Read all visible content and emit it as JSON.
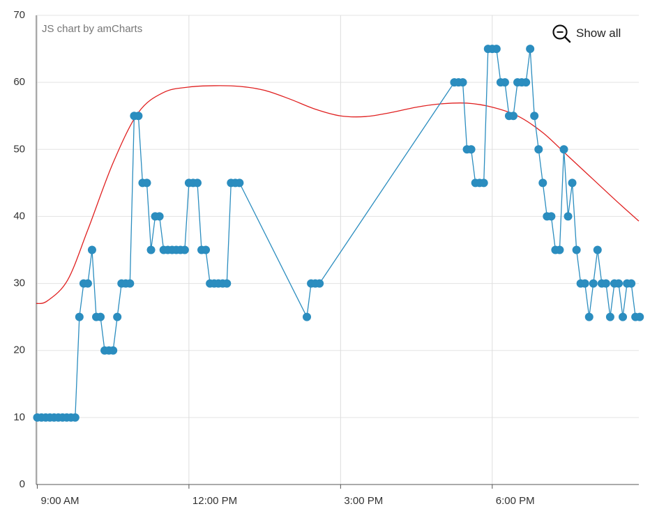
{
  "credit": "JS chart by amCharts",
  "zoom_out_label": "Show all",
  "chart_data": {
    "type": "line",
    "ylim": [
      0,
      70
    ],
    "y_ticks": [
      0,
      10,
      20,
      30,
      40,
      50,
      60,
      70
    ],
    "x_unit": "hours",
    "xlim": [
      8.98,
      20.9
    ],
    "x_ticks": [
      {
        "x": 9,
        "label": "9:00 AM"
      },
      {
        "x": 12,
        "label": "12:00 PM"
      },
      {
        "x": 15,
        "label": "3:00 PM"
      },
      {
        "x": 18,
        "label": "6:00 PM"
      }
    ],
    "grid": true,
    "colors": {
      "series": "#2b8dbf",
      "marker": "#2b8dbf",
      "trend": "#e02020"
    },
    "series": [
      {
        "kind": "markers-line",
        "points": [
          [
            9.0,
            10
          ],
          [
            9.083,
            10
          ],
          [
            9.167,
            10
          ],
          [
            9.25,
            10
          ],
          [
            9.333,
            10
          ],
          [
            9.417,
            10
          ],
          [
            9.5,
            10
          ],
          [
            9.583,
            10
          ],
          [
            9.667,
            10
          ],
          [
            9.75,
            10
          ],
          [
            9.833,
            25
          ],
          [
            9.917,
            30
          ],
          [
            10.0,
            30
          ],
          [
            10.083,
            35
          ],
          [
            10.167,
            25
          ],
          [
            10.25,
            25
          ],
          [
            10.333,
            20
          ],
          [
            10.417,
            20
          ],
          [
            10.5,
            20
          ],
          [
            10.583,
            25
          ],
          [
            10.667,
            30
          ],
          [
            10.75,
            30
          ],
          [
            10.833,
            30
          ],
          [
            10.917,
            55
          ],
          [
            11.0,
            55
          ],
          [
            11.083,
            45
          ],
          [
            11.167,
            45
          ],
          [
            11.25,
            35
          ],
          [
            11.333,
            40
          ],
          [
            11.417,
            40
          ],
          [
            11.5,
            35
          ],
          [
            11.583,
            35
          ],
          [
            11.667,
            35
          ],
          [
            11.75,
            35
          ],
          [
            11.833,
            35
          ],
          [
            11.917,
            35
          ],
          [
            12.0,
            45
          ],
          [
            12.083,
            45
          ],
          [
            12.167,
            45
          ],
          [
            12.25,
            35
          ],
          [
            12.333,
            35
          ],
          [
            12.417,
            30
          ],
          [
            12.5,
            30
          ],
          [
            12.583,
            30
          ],
          [
            12.667,
            30
          ],
          [
            12.75,
            30
          ],
          [
            12.833,
            45
          ],
          [
            12.917,
            45
          ],
          [
            13.0,
            45
          ],
          [
            14.333,
            25
          ],
          [
            14.417,
            30
          ],
          [
            14.5,
            30
          ],
          [
            14.583,
            30
          ],
          [
            17.25,
            60
          ],
          [
            17.333,
            60
          ],
          [
            17.417,
            60
          ],
          [
            17.5,
            50
          ],
          [
            17.583,
            50
          ],
          [
            17.667,
            45
          ],
          [
            17.75,
            45
          ],
          [
            17.833,
            45
          ],
          [
            17.917,
            65
          ],
          [
            18.0,
            65
          ],
          [
            18.083,
            65
          ],
          [
            18.167,
            60
          ],
          [
            18.25,
            60
          ],
          [
            18.333,
            55
          ],
          [
            18.417,
            55
          ],
          [
            18.5,
            60
          ],
          [
            18.583,
            60
          ],
          [
            18.667,
            60
          ],
          [
            18.75,
            65
          ],
          [
            18.833,
            55
          ],
          [
            18.917,
            50
          ],
          [
            19.0,
            45
          ],
          [
            19.083,
            40
          ],
          [
            19.167,
            40
          ],
          [
            19.25,
            35
          ],
          [
            19.333,
            35
          ],
          [
            19.417,
            50
          ],
          [
            19.5,
            40
          ],
          [
            19.583,
            45
          ],
          [
            19.667,
            35
          ],
          [
            19.75,
            30
          ],
          [
            19.833,
            30
          ],
          [
            19.917,
            25
          ],
          [
            20.0,
            30
          ],
          [
            20.083,
            35
          ],
          [
            20.167,
            30
          ],
          [
            20.25,
            30
          ],
          [
            20.333,
            25
          ],
          [
            20.417,
            30
          ],
          [
            20.5,
            30
          ],
          [
            20.583,
            25
          ],
          [
            20.667,
            30
          ],
          [
            20.75,
            30
          ],
          [
            20.833,
            25
          ],
          [
            20.917,
            25
          ]
        ]
      },
      {
        "kind": "trend-curve",
        "points": [
          [
            8.98,
            27
          ],
          [
            9.2,
            27.4
          ],
          [
            9.6,
            30.5
          ],
          [
            10.0,
            38
          ],
          [
            10.5,
            48
          ],
          [
            11.0,
            55.5
          ],
          [
            11.5,
            58.5
          ],
          [
            12.0,
            59.3
          ],
          [
            12.5,
            59.5
          ],
          [
            13.0,
            59.4
          ],
          [
            13.5,
            58.8
          ],
          [
            14.0,
            57.5
          ],
          [
            14.5,
            56
          ],
          [
            15.0,
            55
          ],
          [
            15.5,
            54.9
          ],
          [
            16.0,
            55.5
          ],
          [
            16.5,
            56.3
          ],
          [
            17.0,
            56.8
          ],
          [
            17.5,
            56.9
          ],
          [
            18.0,
            56.3
          ],
          [
            18.5,
            55
          ],
          [
            19.0,
            52.5
          ],
          [
            19.5,
            49
          ],
          [
            20.0,
            45.5
          ],
          [
            20.5,
            42
          ],
          [
            20.9,
            39.3
          ]
        ]
      }
    ]
  }
}
